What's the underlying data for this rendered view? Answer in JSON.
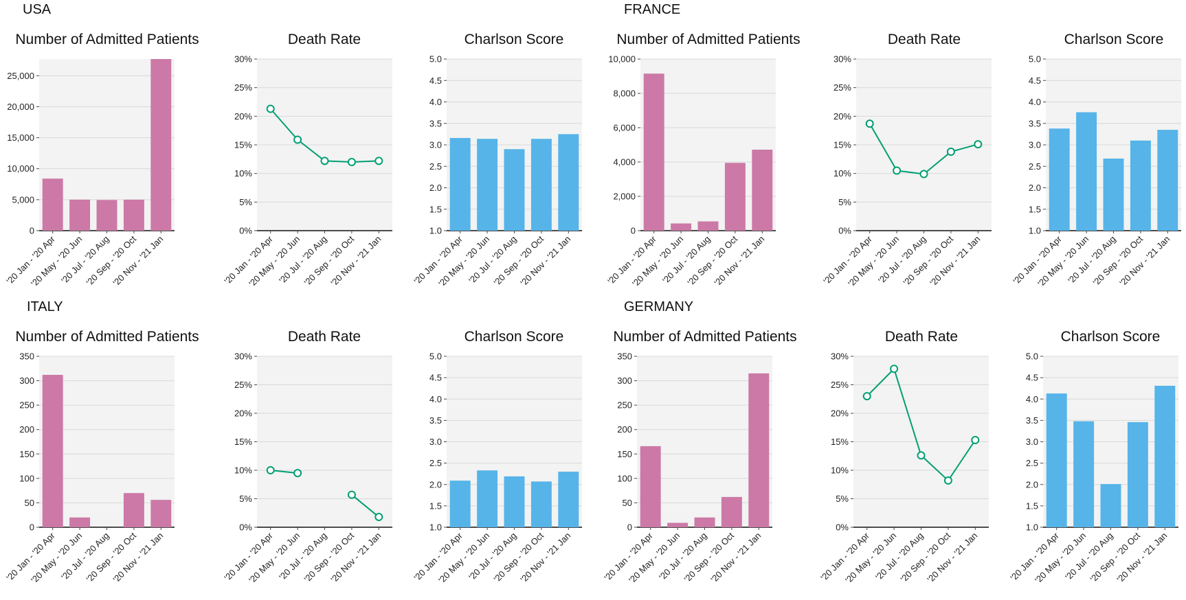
{
  "countries": [
    {
      "name": "USA"
    },
    {
      "name": "FRANCE"
    },
    {
      "name": "ITALY"
    },
    {
      "name": "GERMANY"
    }
  ],
  "colors": {
    "patients": "#CC79A7",
    "death": "#009E73",
    "charlson": "#56B4E9",
    "panel_bg": "#F2F3F2",
    "grid": "#D8D8D8"
  },
  "chart_data": [
    {
      "country": "USA",
      "type": "bar",
      "title": "Number of Admitted Patients",
      "categories": [
        "'20 Jan - '20 Apr",
        "'20 May - '20 Jun",
        "'20 Jul - '20 Aug",
        "'20 Sep - '20 Oct",
        "'20 Nov - '21 Jan"
      ],
      "values": [
        8400,
        5000,
        4950,
        5000,
        27700
      ],
      "ylim": [
        0,
        27700
      ],
      "yticks": [
        0,
        5000,
        10000,
        15000,
        20000,
        25000
      ],
      "ytick_labels": [
        "0",
        "5,000",
        "10,000",
        "15,000",
        "20,000",
        "25,000"
      ]
    },
    {
      "country": "USA",
      "type": "line",
      "title": "Death Rate",
      "categories": [
        "'20 Jan - '20 Apr",
        "'20 May - '20 Jun",
        "'20 Jul - '20 Aug",
        "'20 Sep - '20 Oct",
        "'20 Nov - '21 Jan"
      ],
      "values": [
        21.3,
        15.9,
        12.2,
        12.0,
        12.2
      ],
      "ylim": [
        0,
        30
      ],
      "yticks": [
        0,
        5,
        10,
        15,
        20,
        25,
        30
      ],
      "ytick_labels": [
        "0%",
        "5%",
        "10%",
        "15%",
        "20%",
        "25%",
        "30%"
      ]
    },
    {
      "country": "USA",
      "type": "bar",
      "title": "Charlson Score",
      "categories": [
        "'20 Jan - '20 Apr",
        "'20 May - '20 Jun",
        "'20 Jul - '20 Aug",
        "'20 Sep - '20 Oct",
        "'20 Nov - '21 Jan"
      ],
      "values": [
        3.16,
        3.14,
        2.9,
        3.14,
        3.25
      ],
      "ylim": [
        1,
        5
      ],
      "yticks": [
        1,
        1.5,
        2,
        2.5,
        3,
        3.5,
        4,
        4.5,
        5
      ],
      "ytick_labels": [
        "1.0",
        "1.5",
        "2.0",
        "2.5",
        "3.0",
        "3.5",
        "4.0",
        "4.5",
        "5.0"
      ]
    },
    {
      "country": "FRANCE",
      "type": "bar",
      "title": "Number of Admitted Patients",
      "categories": [
        "'20 Jan - '20 Apr",
        "'20 May - '20 Jun",
        "'20 Jul - '20 Aug",
        "'20 Sep - '20 Oct",
        "'20 Nov - '21 Jan"
      ],
      "values": [
        9150,
        420,
        540,
        3950,
        4720
      ],
      "ylim": [
        0,
        10000
      ],
      "yticks": [
        0,
        2000,
        4000,
        6000,
        8000,
        10000
      ],
      "ytick_labels": [
        "0",
        "2,000",
        "4,000",
        "6,000",
        "8,000",
        "10,000"
      ]
    },
    {
      "country": "FRANCE",
      "type": "line",
      "title": "Death Rate",
      "categories": [
        "'20 Jan - '20 Apr",
        "'20 May - '20 Jun",
        "'20 Jul - '20 Aug",
        "'20 Sep - '20 Oct",
        "'20 Nov - '21 Jan"
      ],
      "values": [
        18.7,
        10.5,
        9.9,
        13.8,
        15.1
      ],
      "ylim": [
        0,
        30
      ],
      "yticks": [
        0,
        5,
        10,
        15,
        20,
        25,
        30
      ],
      "ytick_labels": [
        "0%",
        "5%",
        "10%",
        "15%",
        "20%",
        "25%",
        "30%"
      ]
    },
    {
      "country": "FRANCE",
      "type": "bar",
      "title": "Charlson Score",
      "categories": [
        "'20 Jan - '20 Apr",
        "'20 May - '20 Jun",
        "'20 Jul - '20 Aug",
        "'20 Sep - '20 Oct",
        "'20 Nov - '21 Jan"
      ],
      "values": [
        3.38,
        3.76,
        2.68,
        3.1,
        3.35
      ],
      "ylim": [
        1,
        5
      ],
      "yticks": [
        1,
        1.5,
        2,
        2.5,
        3,
        3.5,
        4,
        4.5,
        5
      ],
      "ytick_labels": [
        "1.0",
        "1.5",
        "2.0",
        "2.5",
        "3.0",
        "3.5",
        "4.0",
        "4.5",
        "5.0"
      ]
    },
    {
      "country": "ITALY",
      "type": "bar",
      "title": "Number of Admitted Patients",
      "categories": [
        "'20 Jan - '20 Apr",
        "'20 May - '20 Jun",
        "'20 Jul - '20 Aug",
        "'20 Sep - '20 Oct",
        "'20 Nov - '21 Jan"
      ],
      "values": [
        312,
        20,
        0,
        70,
        56
      ],
      "ylim": [
        0,
        350
      ],
      "yticks": [
        0,
        50,
        100,
        150,
        200,
        250,
        300,
        350
      ],
      "ytick_labels": [
        "0",
        "50",
        "100",
        "150",
        "200",
        "250",
        "300",
        "350"
      ]
    },
    {
      "country": "ITALY",
      "type": "line",
      "title": "Death Rate",
      "categories": [
        "'20 Jan - '20 Apr",
        "'20 May - '20 Jun",
        "'20 Jul - '20 Aug",
        "'20 Sep - '20 Oct",
        "'20 Nov - '21 Jan"
      ],
      "values": [
        10.0,
        9.5,
        null,
        5.7,
        1.8
      ],
      "ylim": [
        0,
        30
      ],
      "yticks": [
        0,
        5,
        10,
        15,
        20,
        25,
        30
      ],
      "ytick_labels": [
        "0%",
        "5%",
        "10%",
        "15%",
        "20%",
        "25%",
        "30%"
      ]
    },
    {
      "country": "ITALY",
      "type": "bar",
      "title": "Charlson Score",
      "categories": [
        "'20 Jan - '20 Apr",
        "'20 May - '20 Jun",
        "'20 Jul - '20 Aug",
        "'20 Sep - '20 Oct",
        "'20 Nov - '21 Jan"
      ],
      "values": [
        2.09,
        2.33,
        2.19,
        2.07,
        2.3
      ],
      "ylim": [
        1,
        5
      ],
      "yticks": [
        1,
        1.5,
        2,
        2.5,
        3,
        3.5,
        4,
        4.5,
        5
      ],
      "ytick_labels": [
        "1.0",
        "1.5",
        "2.0",
        "2.5",
        "3.0",
        "3.5",
        "4.0",
        "4.5",
        "5.0"
      ]
    },
    {
      "country": "GERMANY",
      "type": "bar",
      "title": "Number of Admitted Patients",
      "categories": [
        "'20 Jan - '20 Apr",
        "'20 May - '20 Jun",
        "'20 Jul - '20 Aug",
        "'20 Sep - '20 Oct",
        "'20 Nov - '21 Jan"
      ],
      "values": [
        166,
        9,
        20,
        62,
        315
      ],
      "ylim": [
        0,
        350
      ],
      "yticks": [
        0,
        50,
        100,
        150,
        200,
        250,
        300,
        350
      ],
      "ytick_labels": [
        "0",
        "50",
        "100",
        "150",
        "200",
        "250",
        "300",
        "350"
      ]
    },
    {
      "country": "GERMANY",
      "type": "line",
      "title": "Death Rate",
      "categories": [
        "'20 Jan - '20 Apr",
        "'20 May - '20 Jun",
        "'20 Jul - '20 Aug",
        "'20 Sep - '20 Oct",
        "'20 Nov - '21 Jan"
      ],
      "values": [
        23.0,
        27.8,
        12.6,
        8.2,
        15.3
      ],
      "ylim": [
        0,
        30
      ],
      "yticks": [
        0,
        5,
        10,
        15,
        20,
        25,
        30
      ],
      "ytick_labels": [
        "0%",
        "5%",
        "10%",
        "15%",
        "20%",
        "25%",
        "30%"
      ]
    },
    {
      "country": "GERMANY",
      "type": "bar",
      "title": "Charlson Score",
      "categories": [
        "'20 Jan - '20 Apr",
        "'20 May - '20 Jun",
        "'20 Jul - '20 Aug",
        "'20 Sep - '20 Oct",
        "'20 Nov - '21 Jan"
      ],
      "values": [
        4.13,
        3.48,
        2.01,
        3.46,
        4.31
      ],
      "ylim": [
        1,
        5
      ],
      "yticks": [
        1,
        1.5,
        2,
        2.5,
        3,
        3.5,
        4,
        4.5,
        5
      ],
      "ytick_labels": [
        "1.0",
        "1.5",
        "2.0",
        "2.5",
        "3.0",
        "3.5",
        "4.0",
        "4.5",
        "5.0"
      ]
    }
  ]
}
